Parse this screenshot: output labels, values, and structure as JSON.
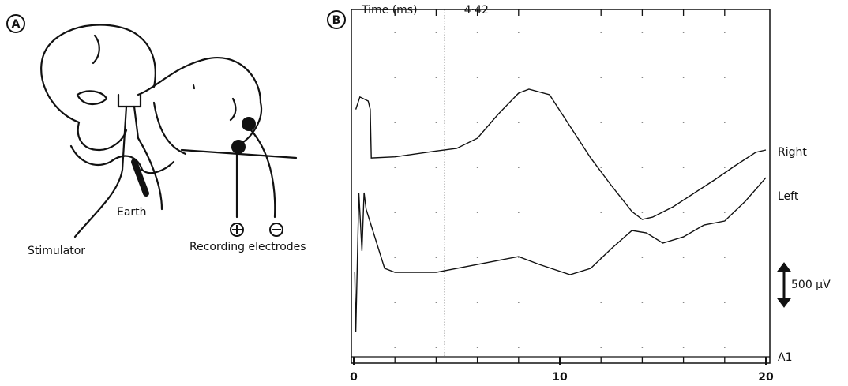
{
  "panel_a": {
    "label": "A",
    "earth": "Earth",
    "stimulator": "Stimulator",
    "recording": "Recording electrodes"
  },
  "chart_data": {
    "type": "line",
    "panel_label": "B",
    "x_label": "Time (ms)",
    "xlim": [
      0,
      20
    ],
    "xticks": [
      0,
      10,
      20
    ],
    "xminorticks": [
      2,
      4,
      6,
      8,
      12,
      14,
      16,
      18
    ],
    "ylim": [
      0,
      4200
    ],
    "color": "#111111",
    "cursor": {
      "value": 4.42,
      "label": "4·42"
    },
    "scale_bar": {
      "value": 500,
      "label": "500 µV"
    },
    "baseline_label": "A1",
    "series": [
      {
        "name": "Right",
        "x": [
          0.1,
          0.3,
          0.7,
          0.8,
          0.85,
          2,
          4,
          5,
          6,
          7,
          8,
          8.5,
          9.5,
          10.5,
          11.5,
          12.5,
          13.5,
          14,
          14.5,
          15.5,
          16.5,
          17.5,
          18.5,
          19.5,
          20
        ],
        "values": [
          3000,
          3150,
          3100,
          3000,
          2417,
          2430,
          2500,
          2531,
          2654,
          2939,
          3195,
          3242,
          3176,
          2797,
          2417,
          2086,
          1773,
          1678,
          1706,
          1830,
          1991,
          2152,
          2323,
          2484,
          2512
        ]
      },
      {
        "name": "Left",
        "x": [
          0.05,
          0.1,
          0.25,
          0.4,
          0.5,
          0.6,
          1.5,
          2,
          4,
          5,
          6,
          7,
          8,
          9,
          10.5,
          11.5,
          12.5,
          13.5,
          14.2,
          15,
          16,
          17,
          18,
          19,
          20
        ],
        "values": [
          1043,
          332,
          1991,
          1300,
          2000,
          1800,
          1090,
          1043,
          1043,
          1090,
          1138,
          1185,
          1232,
          1138,
          1014,
          1090,
          1327,
          1545,
          1517,
          1394,
          1469,
          1612,
          1659,
          1896,
          2180
        ]
      }
    ]
  }
}
